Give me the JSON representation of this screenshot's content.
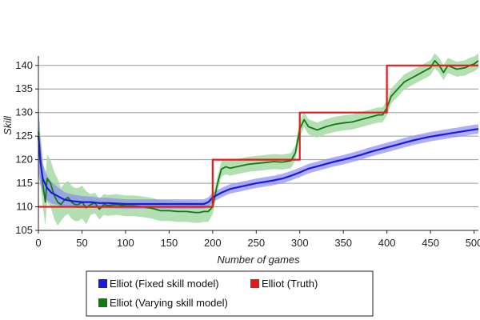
{
  "chart_data": {
    "type": "line",
    "title": "",
    "xlabel": "Number of games",
    "ylabel": "Skill",
    "xlim": [
      0,
      505
    ],
    "ylim": [
      105,
      142
    ],
    "xticks": [
      0,
      50,
      100,
      150,
      200,
      250,
      300,
      350,
      400,
      450,
      500
    ],
    "yticks": [
      105,
      110,
      115,
      120,
      125,
      130,
      135,
      140
    ],
    "grid": "horizontal",
    "legend_position": "bottom",
    "series": [
      {
        "name": "Elliot (Fixed skill model)",
        "color": "#1a1adc",
        "band_color": "#8c8cf0",
        "x": [
          0,
          2,
          5,
          10,
          15,
          20,
          25,
          30,
          40,
          50,
          60,
          70,
          80,
          90,
          100,
          110,
          120,
          130,
          140,
          150,
          160,
          170,
          180,
          190,
          195,
          200,
          210,
          220,
          230,
          240,
          250,
          260,
          270,
          280,
          290,
          300,
          310,
          320,
          330,
          340,
          350,
          360,
          370,
          380,
          390,
          400,
          410,
          420,
          430,
          440,
          450,
          460,
          470,
          480,
          490,
          500,
          505
        ],
        "values": [
          125,
          120,
          116,
          114,
          113,
          112.5,
          112,
          111.5,
          111.2,
          111,
          111,
          110.8,
          110.8,
          110.7,
          110.6,
          110.6,
          110.6,
          110.6,
          110.6,
          110.6,
          110.6,
          110.6,
          110.6,
          110.6,
          111,
          112,
          113,
          113.8,
          114.2,
          114.6,
          115,
          115.3,
          115.6,
          116,
          116.6,
          117.3,
          118.1,
          118.6,
          119.1,
          119.6,
          120,
          120.5,
          121,
          121.6,
          122.1,
          122.6,
          123.1,
          123.6,
          124.1,
          124.5,
          124.9,
          125.2,
          125.5,
          125.8,
          126.1,
          126.4,
          126.5
        ],
        "band": [
          8,
          5,
          3.2,
          2.6,
          2.3,
          2,
          1.8,
          1.6,
          1.4,
          1.3,
          1.2,
          1.15,
          1.1,
          1.05,
          1,
          1,
          1,
          1,
          1,
          1,
          1,
          1,
          1,
          1,
          1,
          1,
          1,
          1,
          1,
          1,
          1,
          1,
          1,
          1,
          1,
          1,
          1,
          1,
          1,
          1,
          1,
          1,
          1,
          1,
          1,
          1,
          1,
          1,
          1,
          1,
          1,
          1,
          1,
          1,
          1,
          1,
          1
        ]
      },
      {
        "name": "Elliot (Truth)",
        "color": "#e31a1a",
        "x": [
          0,
          200,
          200,
          300,
          300,
          400,
          400,
          505
        ],
        "values": [
          110,
          110,
          120,
          120,
          130,
          130,
          140,
          140
        ]
      },
      {
        "name": "Elliot (Varying skill model)",
        "color": "#137a13",
        "band_color": "#a6d9a6",
        "x": [
          0,
          2,
          5,
          8,
          10,
          14,
          18,
          22,
          26,
          30,
          34,
          38,
          42,
          46,
          50,
          55,
          60,
          65,
          70,
          75,
          80,
          90,
          100,
          110,
          120,
          130,
          140,
          150,
          160,
          170,
          180,
          185,
          190,
          195,
          200,
          205,
          210,
          215,
          220,
          230,
          240,
          250,
          260,
          270,
          280,
          290,
          295,
          300,
          305,
          310,
          320,
          330,
          340,
          350,
          360,
          370,
          380,
          390,
          395,
          400,
          405,
          410,
          420,
          430,
          440,
          450,
          455,
          460,
          465,
          470,
          480,
          490,
          495,
          500,
          505
        ],
        "values": [
          126,
          121,
          115,
          111,
          116,
          115,
          112.5,
          111,
          110.5,
          111.5,
          112,
          111,
          110.5,
          110.5,
          111,
          109.8,
          110.5,
          110.8,
          109.5,
          110.5,
          110.3,
          110.5,
          110.2,
          110.2,
          110,
          109.7,
          109.2,
          109.2,
          109,
          109,
          108.8,
          108.8,
          109,
          109,
          110,
          114.5,
          118,
          118.5,
          118.2,
          118.6,
          119,
          119.2,
          119.4,
          119.6,
          119.5,
          119.8,
          121.5,
          126.5,
          128.5,
          127,
          126.3,
          127,
          127.5,
          127.8,
          128,
          128.5,
          129,
          129.5,
          129.5,
          131,
          133.5,
          134.5,
          136.5,
          137.5,
          138.5,
          139.5,
          141,
          140,
          138.5,
          140,
          139.2,
          139.5,
          140,
          140.3,
          141
        ]
      }
    ]
  },
  "legend": {
    "items": [
      {
        "label": "Elliot (Fixed skill model)",
        "color": "#1a1adc"
      },
      {
        "label": "Elliot (Truth)",
        "color": "#e31a1a"
      },
      {
        "label": "Elliot (Varying skill model)",
        "color": "#137a13"
      }
    ]
  }
}
